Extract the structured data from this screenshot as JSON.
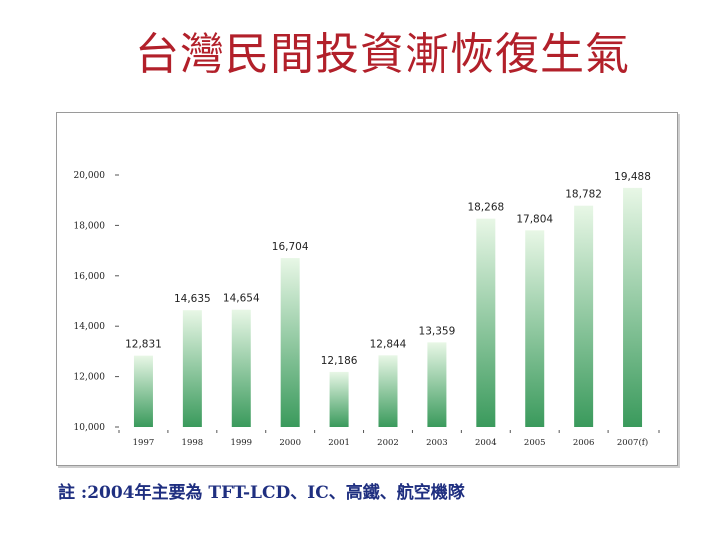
{
  "slide": {
    "title": "台灣民間投資漸恢復生氣",
    "note": "註 :2004年主要為 TFT-LCD、IC、高鐵、航空機隊"
  },
  "colors": {
    "title": "#b2202a",
    "note": "#1f2f80",
    "bar_top": "#e8f7e6",
    "bar_bottom": "#3a9a5c"
  },
  "chart_data": {
    "type": "bar",
    "unit_label": "",
    "categories": [
      "1997",
      "1998",
      "1999",
      "2000",
      "2001",
      "2002",
      "2003",
      "2004",
      "2005",
      "2006",
      "2007(f)"
    ],
    "values": [
      12831,
      14635,
      14654,
      16704,
      12186,
      12844,
      13359,
      18268,
      17804,
      18782,
      19488
    ],
    "data_labels": [
      "12,831",
      "14,635",
      "14,654",
      "16,704",
      "12,186",
      "12,844",
      "13,359",
      "18,268",
      "17,804",
      "18,782",
      "19,488"
    ],
    "yticks": [
      10000,
      12000,
      14000,
      16000,
      18000,
      20000
    ],
    "ytick_labels": [
      "10,000",
      "12,000",
      "14,000",
      "16,000",
      "18,000",
      "20,000"
    ],
    "ylim": [
      10000,
      20000
    ],
    "title": "",
    "xlabel": "",
    "ylabel": "",
    "legend": "none",
    "grid": false
  }
}
